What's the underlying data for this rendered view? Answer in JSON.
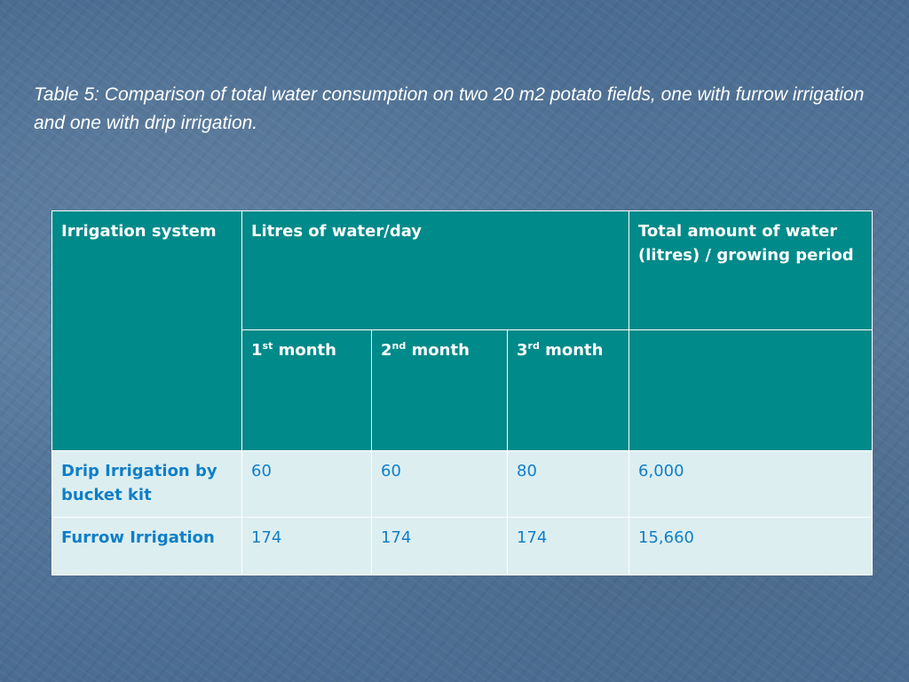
{
  "caption": "Table 5: Comparison of total water consumption on two 20 m2 potato fields, one with furrow irrigation and one with drip irrigation.",
  "table": {
    "header": {
      "irrigation_system": "Irrigation system",
      "litres_per_day": "Litres of water/day",
      "total_amount": "Total amount of water (litres) / growing period",
      "months": [
        {
          "num": "1",
          "sup": "st",
          "word": "month"
        },
        {
          "num": "2",
          "sup": "nd",
          "word": "month"
        },
        {
          "num": "3",
          "sup": "rd",
          "word": "month"
        }
      ]
    },
    "rows": [
      {
        "system": "Drip Irrigation by bucket kit",
        "m1": "60",
        "m2": "60",
        "m3": "80",
        "total": "6,000"
      },
      {
        "system": "Furrow Irrigation",
        "m1": "174",
        "m2": "174",
        "m3": "174",
        "total": "15,660"
      }
    ]
  },
  "colors": {
    "header_bg": "#008a8a",
    "body_bg": "#ddeef0",
    "body_text": "#0f7fc8",
    "slide_bg": "#4d6f93"
  }
}
